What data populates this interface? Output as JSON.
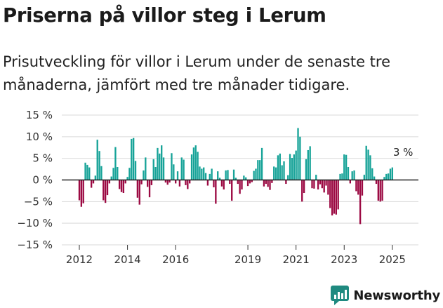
{
  "title": "Priserna på villor steg i Lerum",
  "subtitle": "Prisutveckling för villor i Lerum under de senaste tre månaderna, jämfört med tre månader tidigare.",
  "brand": {
    "name": "Newsworthy",
    "icon": "newsworthy-logo-icon"
  },
  "colors": {
    "positive": "#17a398",
    "negative": "#9c0a43",
    "grid": "#d9d9d9",
    "zero_line": "#222222",
    "brand": "#1f8a80"
  },
  "chart_data": {
    "type": "bar",
    "title": "Priserna på villor steg i Lerum",
    "subtitle": "Prisutveckling för villor i Lerum under de senaste tre månaderna, jämfört med tre månader tidigare.",
    "xlabel": "",
    "ylabel": "",
    "ylim": [
      -15,
      15
    ],
    "yticks": [
      15,
      10,
      5,
      0,
      -5,
      -10,
      -15
    ],
    "ytick_labels": [
      "15 %",
      "10 %",
      "5 %",
      "0 %",
      "−5 %",
      "−10 %",
      "−15 %"
    ],
    "xticks": [
      2012,
      2014,
      2016,
      2019,
      2021,
      2023,
      2025
    ],
    "xtick_labels": [
      "2012",
      "2014",
      "2016",
      "2019",
      "2021",
      "2023",
      "2025"
    ],
    "x_start": "2012-01",
    "x_end": "2025-06",
    "grid": "horizontal",
    "annotations": [
      {
        "text": "3 %",
        "x": "2025-06",
        "y": 3
      }
    ],
    "series": [
      {
        "values": [
          -4.7,
          -6.2,
          -5.4,
          4.0,
          3.5,
          2.9,
          -1.8,
          -0.8,
          1.0,
          9.3,
          6.7,
          3.2,
          -4.7,
          -5.3,
          -3.5,
          -0.8,
          0.8,
          2.8,
          7.6,
          3.0,
          -2.1,
          -2.8,
          -3.0,
          -0.8,
          0.7,
          2.8,
          9.5,
          9.7,
          4.4,
          -4.1,
          -5.7,
          -1.0,
          2.2,
          5.2,
          -1.6,
          -4.0,
          -1.2,
          4.8,
          3.0,
          7.4,
          6.1,
          8.0,
          5.2,
          -0.6,
          -1.1,
          -0.6,
          6.2,
          3.6,
          -0.8,
          2.0,
          -1.5,
          5.2,
          4.7,
          -1.2,
          -2.1,
          -0.8,
          5.9,
          7.5,
          8.0,
          6.5,
          3.1,
          2.6,
          2.9,
          1.6,
          -1.3,
          1.4,
          2.6,
          -1.7,
          -5.5,
          2.0,
          0.5,
          -1.5,
          -2.2,
          2.2,
          2.3,
          -0.9,
          -4.8,
          2.4,
          0.5,
          -0.9,
          -3.2,
          -2.2,
          1.0,
          0.6,
          -1.4,
          -0.8,
          -0.5,
          2.1,
          2.6,
          4.6,
          4.6,
          7.4,
          -1.5,
          -0.9,
          -1.6,
          -2.3,
          -0.7,
          3.1,
          2.9,
          5.7,
          6.1,
          3.4,
          4.3,
          -0.9,
          1.1,
          6.0,
          5.1,
          5.9,
          6.8,
          12.0,
          10.0,
          -5.0,
          -3.0,
          4.8,
          6.9,
          7.8,
          -1.9,
          -2.0,
          1.2,
          -2.2,
          -1.0,
          -1.9,
          -2.9,
          -1.3,
          -3.4,
          -6.5,
          -8.2,
          -7.8,
          -8.0,
          -6.8,
          1.4,
          1.5,
          5.9,
          5.8,
          3.0,
          -0.8,
          2.0,
          2.2,
          -2.6,
          -3.4,
          -10.2,
          -3.6,
          1.2,
          7.9,
          7.0,
          5.7,
          2.7,
          0.8,
          -0.9,
          -4.8,
          -5.0,
          -4.8,
          0.7,
          1.4,
          1.5,
          2.6,
          2.9
        ]
      }
    ]
  }
}
